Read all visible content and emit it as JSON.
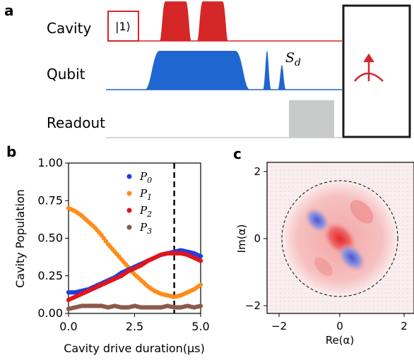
{
  "panels": {
    "a": {
      "label": "a",
      "rows": [
        "Cavity",
        "Qubit",
        "Readout"
      ],
      "ket": "|1⟩",
      "pulse_label": "S",
      "pulse_label_sub": "d",
      "colors": {
        "cavity": "#d62728",
        "qubit": "#2066d0",
        "readout": "#c8cbc9"
      }
    },
    "b": {
      "label": "b",
      "chart_data": {
        "type": "scatter",
        "xlabel": "Cavity drive duration(μs)",
        "ylabel": "Cavity Population",
        "xlim": [
          0.0,
          5.0
        ],
        "ylim": [
          0.0,
          1.0
        ],
        "x_ticks": [
          "0.0",
          "2.5",
          "5.0"
        ],
        "y_ticks": [
          "0.00",
          "0.25",
          "0.50",
          "0.75",
          "1.00"
        ],
        "vline_x": 4.0,
        "legend_position": "top-right",
        "x": [
          0.0,
          0.25,
          0.5,
          0.75,
          1.0,
          1.25,
          1.5,
          1.75,
          2.0,
          2.25,
          2.5,
          2.75,
          3.0,
          3.25,
          3.5,
          3.75,
          4.0,
          4.25,
          4.5,
          4.75,
          5.0
        ],
        "series": [
          {
            "name": "P",
            "sub": "0",
            "color": "#1f3fe0",
            "values": [
              0.14,
              0.14,
              0.15,
              0.16,
              0.18,
              0.2,
              0.22,
              0.24,
              0.27,
              0.29,
              0.31,
              0.33,
              0.35,
              0.37,
              0.39,
              0.4,
              0.41,
              0.42,
              0.41,
              0.4,
              0.38
            ]
          },
          {
            "name": "P",
            "sub": "1",
            "color": "#ff8c1a",
            "values": [
              0.7,
              0.68,
              0.65,
              0.61,
              0.57,
              0.52,
              0.46,
              0.41,
              0.36,
              0.31,
              0.26,
              0.22,
              0.18,
              0.15,
              0.13,
              0.12,
              0.11,
              0.12,
              0.14,
              0.16,
              0.19
            ]
          },
          {
            "name": "P",
            "sub": "2",
            "color": "#e3141c",
            "values": [
              0.09,
              0.11,
              0.13,
              0.15,
              0.17,
              0.19,
              0.21,
              0.23,
              0.25,
              0.28,
              0.3,
              0.32,
              0.35,
              0.37,
              0.39,
              0.4,
              0.4,
              0.4,
              0.39,
              0.37,
              0.35
            ]
          },
          {
            "name": "P",
            "sub": "3",
            "color": "#8c5a4a",
            "values": [
              0.03,
              0.04,
              0.05,
              0.05,
              0.05,
              0.05,
              0.04,
              0.05,
              0.04,
              0.04,
              0.05,
              0.04,
              0.04,
              0.04,
              0.04,
              0.05,
              0.04,
              0.04,
              0.05,
              0.04,
              0.05
            ]
          }
        ]
      }
    },
    "c": {
      "label": "c",
      "xlabel": "Re(α)",
      "ylabel": "Im(α)",
      "x_ticks": [
        "−2",
        "0",
        "2"
      ],
      "y_ticks": [
        "2",
        "0",
        "−2"
      ]
    }
  }
}
